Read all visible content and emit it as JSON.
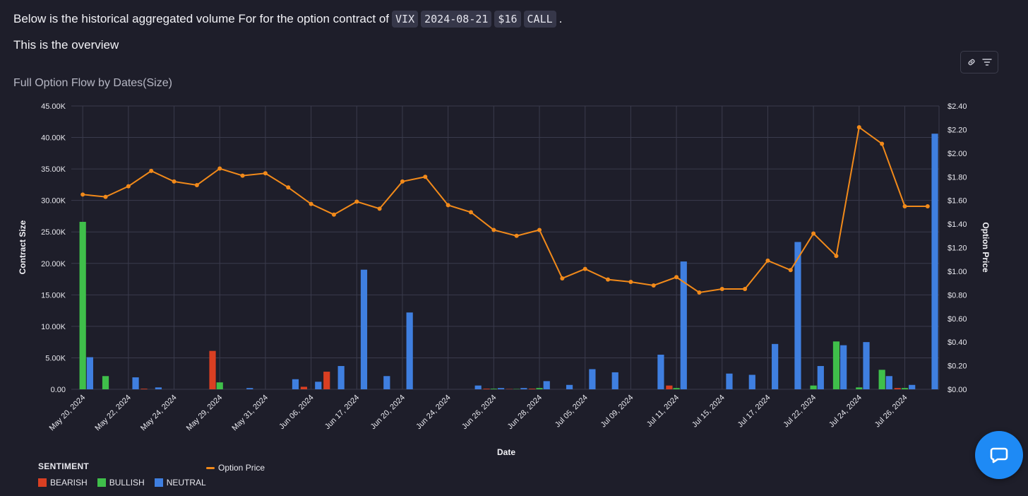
{
  "intro": {
    "text": "Below is the historical aggregated volume For for the option contract of",
    "tags": [
      "VIX",
      "2024-08-21",
      "$16",
      "CALL"
    ],
    "end": "."
  },
  "overview": "This is the overview",
  "toolbar": {
    "link_icon": "link-icon",
    "filter_icon": "filter-icon"
  },
  "chat_icon": "chat-bubble-icon",
  "colors": {
    "bearish": "#d93f22",
    "bullish": "#3fbf4a",
    "neutral": "#3f7fe0",
    "price": "#f28a1a",
    "grid": "#3a3b4c",
    "axis_text": "#e8e8ee"
  },
  "chart_data": {
    "type": "bar",
    "title": "Full Option Flow by Dates(Size)",
    "xlabel": "Date",
    "ylabel": "Contract Size",
    "y2label": "Option Price",
    "ylim": [
      0,
      45000
    ],
    "y2lim": [
      0,
      2.4
    ],
    "yticks": [
      "0.00",
      "5.00K",
      "10.00K",
      "15.00K",
      "20.00K",
      "25.00K",
      "30.00K",
      "35.00K",
      "40.00K",
      "45.00K"
    ],
    "y2ticks": [
      "$0.00",
      "$0.20",
      "$0.40",
      "$0.60",
      "$0.80",
      "$1.00",
      "$1.20",
      "$1.40",
      "$1.60",
      "$1.80",
      "$2.00",
      "$2.20",
      "$2.40"
    ],
    "xticks": [
      "May 20, 2024",
      "May 22, 2024",
      "May 24, 2024",
      "May 29, 2024",
      "May 31, 2024",
      "Jun 06, 2024",
      "Jun 17, 2024",
      "Jun 20, 2024",
      "Jun 24, 2024",
      "Jun 26, 2024",
      "Jun 28, 2024",
      "Jul 05, 2024",
      "Jul 09, 2024",
      "Jul 11, 2024",
      "Jul 15, 2024",
      "Jul 17, 2024",
      "Jul 22, 2024",
      "Jul 24, 2024",
      "Jul 26, 2024"
    ],
    "grid": true,
    "legend": {
      "title": "SENTIMENT",
      "entries": [
        "BEARISH",
        "BULLISH",
        "NEUTRAL"
      ],
      "line_entry": "Option Price"
    },
    "n_slots": 38,
    "series": [
      {
        "name": "BEARISH",
        "values": [
          0,
          0,
          0,
          100,
          0,
          0,
          6100,
          0,
          0,
          0,
          400,
          2800,
          0,
          0,
          0,
          0,
          0,
          0,
          100,
          50,
          100,
          0,
          0,
          0,
          0,
          0,
          600,
          0,
          0,
          0,
          0,
          0,
          0,
          0,
          0,
          0,
          200,
          0
        ]
      },
      {
        "name": "BULLISH",
        "values": [
          26600,
          2100,
          0,
          0,
          0,
          0,
          1100,
          0,
          0,
          0,
          0,
          0,
          0,
          0,
          0,
          0,
          0,
          0,
          100,
          50,
          200,
          0,
          0,
          0,
          0,
          0,
          200,
          0,
          0,
          0,
          0,
          0,
          600,
          7600,
          300,
          3100,
          200,
          0
        ]
      },
      {
        "name": "NEUTRAL",
        "values": [
          5100,
          0,
          1900,
          300,
          0,
          0,
          0,
          200,
          0,
          1600,
          1200,
          3700,
          19000,
          2100,
          12200,
          0,
          0,
          600,
          200,
          200,
          1300,
          700,
          3200,
          2700,
          0,
          5500,
          20300,
          0,
          2500,
          2300,
          7200,
          23400,
          3700,
          7000,
          7500,
          2100,
          700,
          40600
        ]
      },
      {
        "name": "Option Price",
        "values": [
          1.65,
          1.63,
          1.72,
          1.85,
          1.76,
          1.73,
          1.87,
          1.81,
          1.83,
          1.71,
          1.57,
          1.48,
          1.59,
          1.53,
          1.76,
          1.8,
          1.56,
          1.5,
          1.35,
          1.3,
          1.35,
          0.94,
          1.02,
          0.93,
          0.91,
          0.88,
          0.95,
          0.82,
          0.85,
          0.85,
          1.09,
          1.01,
          1.32,
          1.13,
          2.22,
          2.08,
          1.55,
          1.55
        ]
      }
    ]
  }
}
